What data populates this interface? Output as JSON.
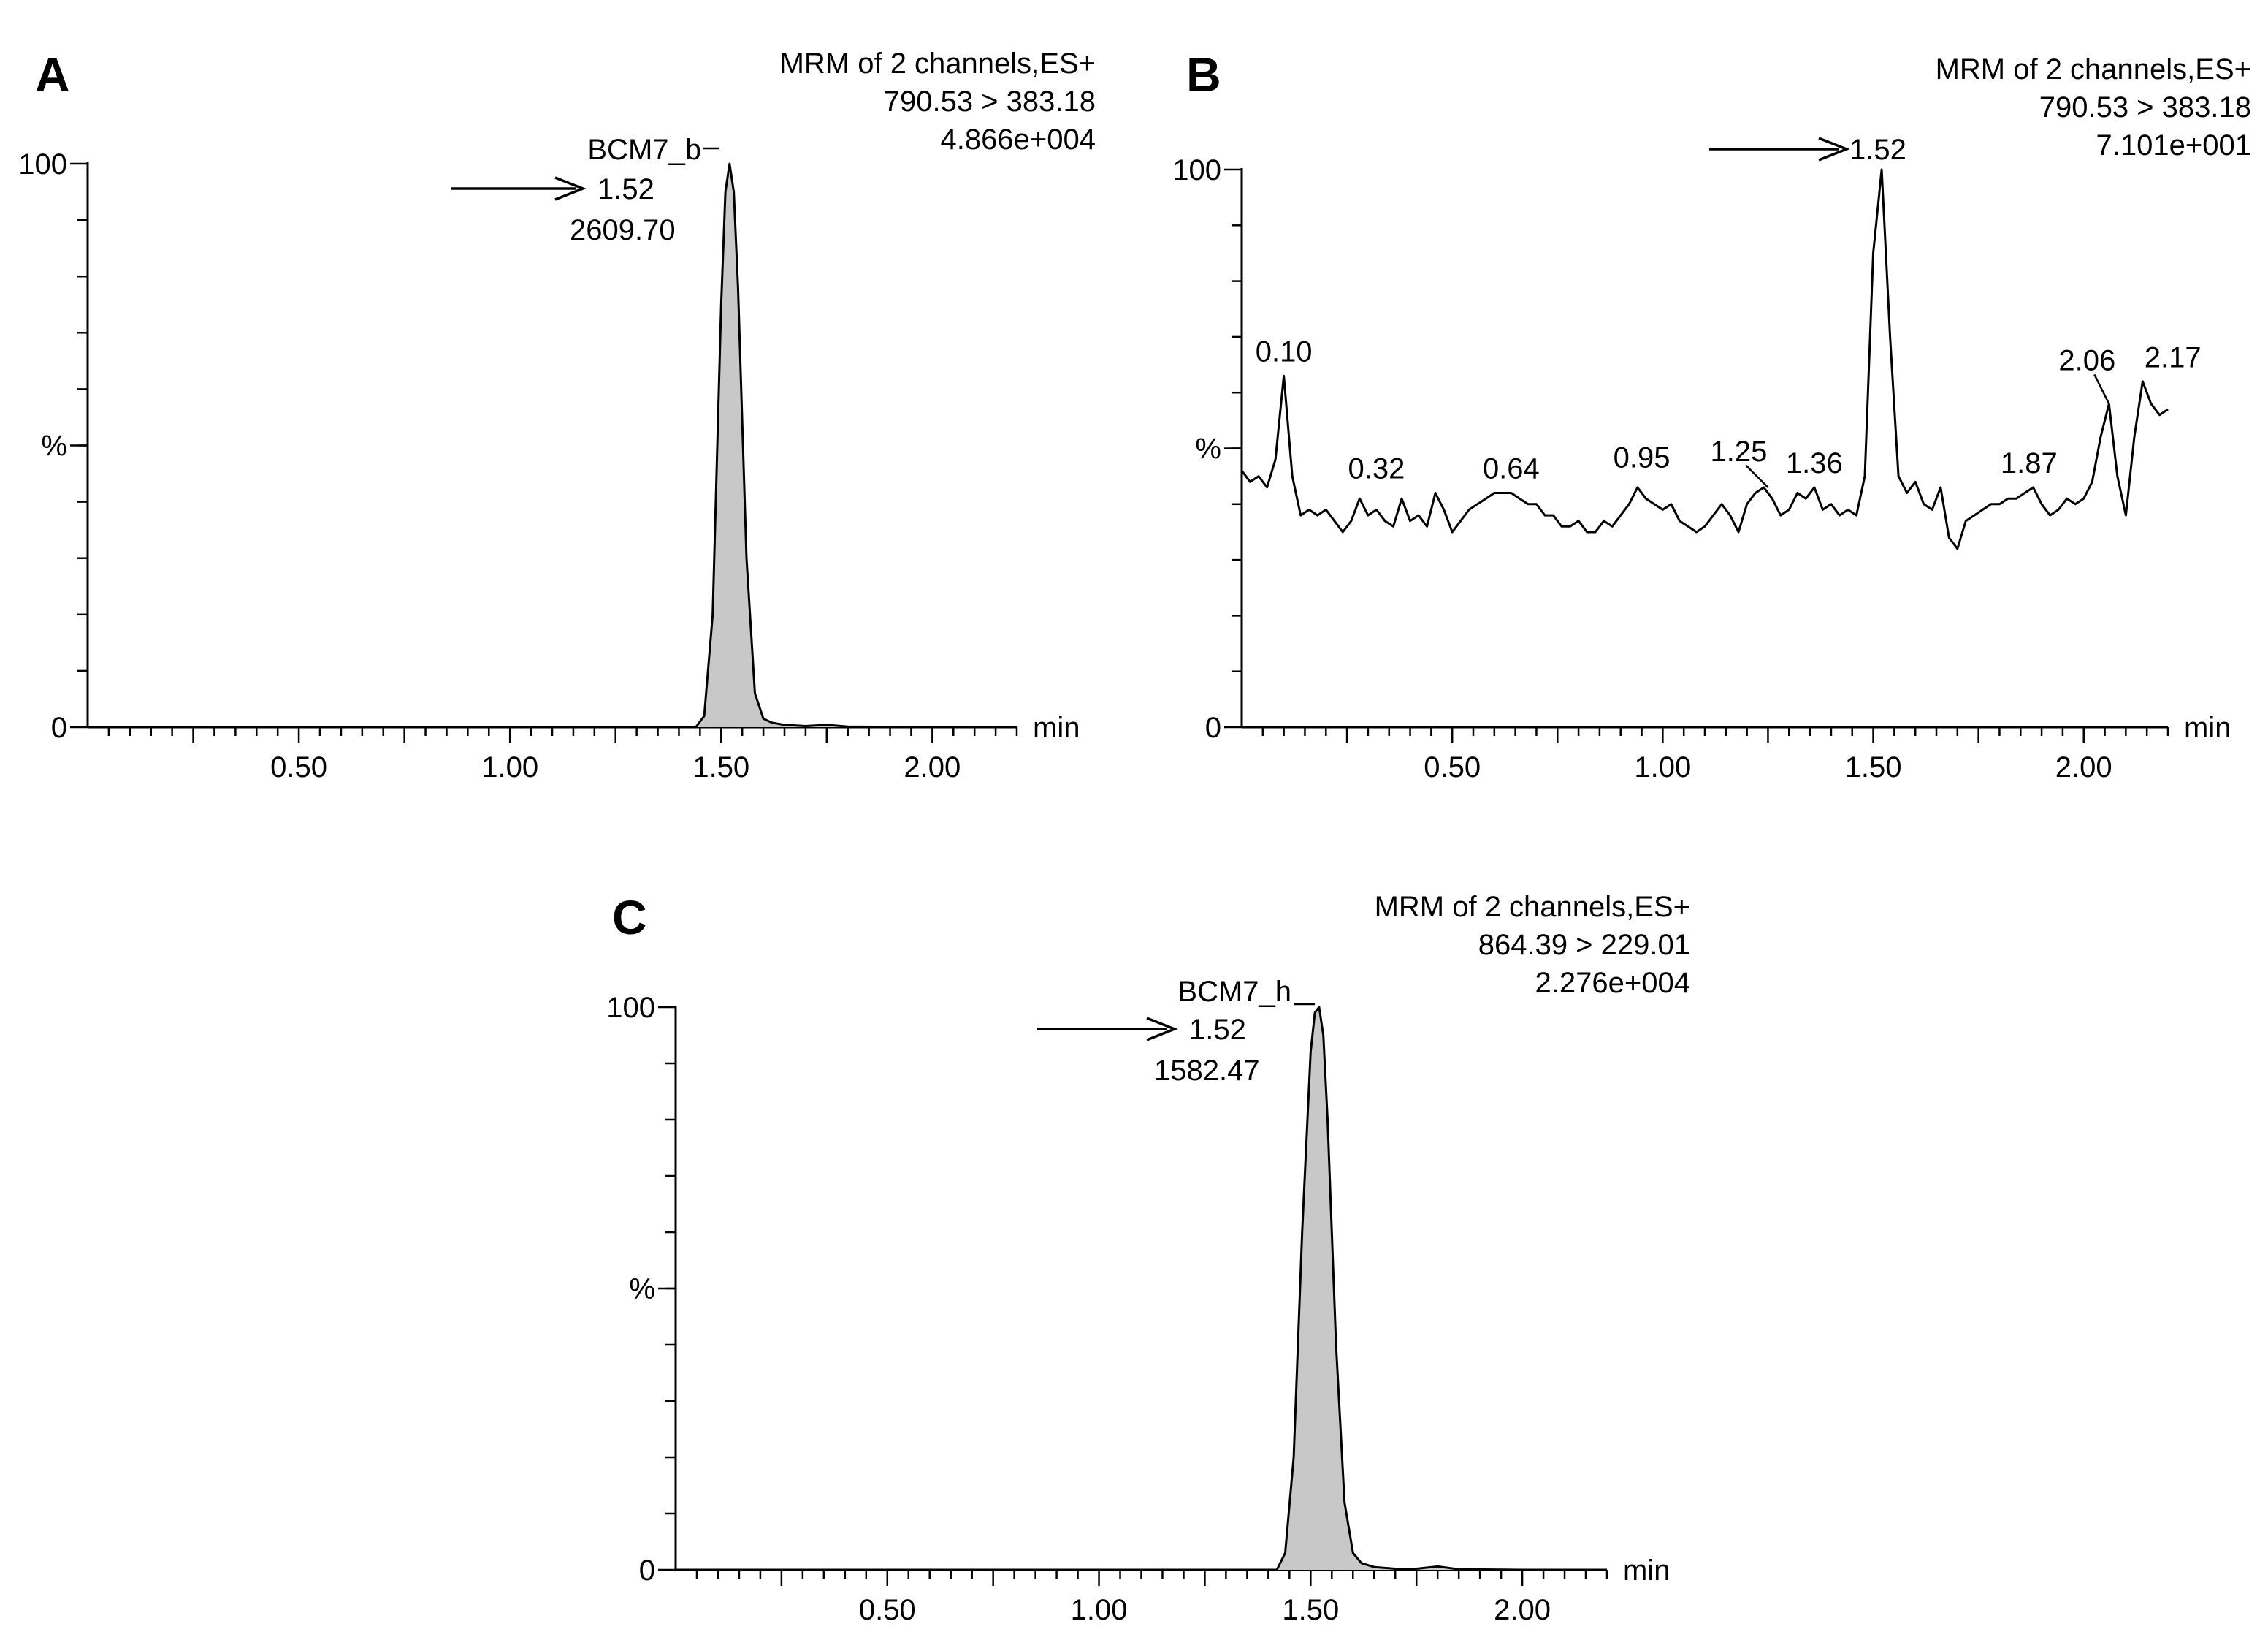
{
  "chart_data": [
    {
      "type": "line",
      "panel": "A",
      "header": [
        "MRM of 2 channels,ES+",
        "790.53 > 383.18",
        "4.866e+004"
      ],
      "xlabel": "min",
      "ylabel": "%",
      "xlim": [
        0,
        2.2
      ],
      "ylim": [
        0,
        100
      ],
      "x_ticks": [
        "0.50",
        "1.00",
        "1.50",
        "2.00"
      ],
      "x_tick_values": [
        0.5,
        1.0,
        1.5,
        2.0
      ],
      "y_ticks": [
        "0",
        "%",
        "100"
      ],
      "y_tick_values": [
        0,
        50,
        100
      ],
      "peak": {
        "name": "BCM7_b",
        "rt_label": "1.52",
        "area_label": "2609.70",
        "rt": 1.52,
        "height": 100
      },
      "filled": true,
      "series": [
        {
          "x": [
            0,
            1.3,
            1.44,
            1.46,
            1.48,
            1.5,
            1.51,
            1.52,
            1.53,
            1.54,
            1.56,
            1.58,
            1.6,
            1.62,
            1.65,
            1.7,
            1.75,
            1.8,
            2.0,
            2.2
          ],
          "y": [
            0,
            0,
            0,
            2,
            20,
            75,
            95,
            100,
            95,
            78,
            30,
            6,
            1.5,
            0.8,
            0.4,
            0.2,
            0.4,
            0.1,
            0,
            0
          ]
        }
      ]
    },
    {
      "type": "line",
      "panel": "B",
      "header": [
        "MRM of 2 channels,ES+",
        "790.53 > 383.18",
        "7.101e+001"
      ],
      "xlabel": "min",
      "ylabel": "%",
      "xlim": [
        0,
        2.2
      ],
      "ylim": [
        0,
        100
      ],
      "x_ticks": [
        "0.50",
        "1.00",
        "1.50",
        "2.00"
      ],
      "x_tick_values": [
        0.5,
        1.0,
        1.5,
        2.0
      ],
      "y_ticks": [
        "0",
        "%",
        "100"
      ],
      "y_tick_values": [
        0,
        50,
        100
      ],
      "arrow_label": "1.52",
      "filled": false,
      "peak_labels": [
        {
          "label": "0.10",
          "x": 0.1,
          "y": 63
        },
        {
          "label": "0.32",
          "x": 0.32,
          "y": 42
        },
        {
          "label": "0.64",
          "x": 0.64,
          "y": 42
        },
        {
          "label": "0.95",
          "x": 0.95,
          "y": 44
        },
        {
          "label": "1.25",
          "x": 1.25,
          "y": 43
        },
        {
          "label": "1.36",
          "x": 1.36,
          "y": 43
        },
        {
          "label": "1.87",
          "x": 1.87,
          "y": 43
        },
        {
          "label": "2.06",
          "x": 2.06,
          "y": 58
        },
        {
          "label": "2.17",
          "x": 2.17,
          "y": 63
        }
      ],
      "series": [
        {
          "x": [
            0,
            0.02,
            0.04,
            0.06,
            0.08,
            0.1,
            0.12,
            0.14,
            0.16,
            0.18,
            0.2,
            0.22,
            0.24,
            0.26,
            0.28,
            0.3,
            0.32,
            0.34,
            0.36,
            0.38,
            0.4,
            0.42,
            0.44,
            0.46,
            0.48,
            0.5,
            0.52,
            0.54,
            0.56,
            0.58,
            0.6,
            0.62,
            0.64,
            0.66,
            0.68,
            0.7,
            0.72,
            0.74,
            0.76,
            0.78,
            0.8,
            0.82,
            0.84,
            0.86,
            0.88,
            0.9,
            0.92,
            0.94,
            0.96,
            0.98,
            1.0,
            1.02,
            1.04,
            1.06,
            1.08,
            1.1,
            1.12,
            1.14,
            1.16,
            1.18,
            1.2,
            1.22,
            1.24,
            1.26,
            1.28,
            1.3,
            1.32,
            1.34,
            1.36,
            1.38,
            1.4,
            1.42,
            1.44,
            1.46,
            1.48,
            1.5,
            1.52,
            1.54,
            1.56,
            1.58,
            1.6,
            1.62,
            1.64,
            1.66,
            1.68,
            1.7,
            1.72,
            1.74,
            1.76,
            1.78,
            1.8,
            1.82,
            1.84,
            1.86,
            1.88,
            1.9,
            1.92,
            1.94,
            1.96,
            1.98,
            2.0,
            2.02,
            2.04,
            2.06,
            2.08,
            2.1,
            2.12,
            2.14,
            2.16,
            2.18,
            2.2
          ],
          "y": [
            46,
            44,
            45,
            43,
            48,
            63,
            45,
            38,
            39,
            38,
            39,
            37,
            35,
            37,
            41,
            38,
            39,
            37,
            36,
            41,
            37,
            38,
            36,
            42,
            39,
            35,
            37,
            39,
            40,
            41,
            42,
            42,
            42,
            41,
            40,
            40,
            38,
            38,
            36,
            36,
            37,
            35,
            35,
            37,
            36,
            38,
            40,
            43,
            41,
            40,
            39,
            40,
            37,
            36,
            35,
            36,
            38,
            40,
            38,
            35,
            40,
            42,
            43,
            41,
            38,
            39,
            42,
            41,
            43,
            39,
            40,
            38,
            39,
            38,
            45,
            85,
            100,
            70,
            45,
            42,
            44,
            40,
            39,
            43,
            34,
            32,
            37,
            38,
            39,
            40,
            40,
            41,
            41,
            42,
            43,
            40,
            38,
            39,
            41,
            40,
            41,
            44,
            52,
            58,
            45,
            38,
            52,
            62,
            58,
            56,
            57
          ]
        }
      ]
    },
    {
      "type": "line",
      "panel": "C",
      "header": [
        "MRM of 2 channels,ES+",
        "864.39 > 229.01",
        "2.276e+004"
      ],
      "xlabel": "min",
      "ylabel": "%",
      "xlim": [
        0,
        2.2
      ],
      "ylim": [
        0,
        100
      ],
      "x_ticks": [
        "0.50",
        "1.00",
        "1.50",
        "2.00"
      ],
      "x_tick_values": [
        0.5,
        1.0,
        1.5,
        2.0
      ],
      "y_ticks": [
        "0",
        "%",
        "100"
      ],
      "y_tick_values": [
        0,
        50,
        100
      ],
      "peak": {
        "name": "BCM7_h",
        "rt_label": "1.52",
        "area_label": "1582.47",
        "rt": 1.52,
        "height": 100
      },
      "filled": true,
      "series": [
        {
          "x": [
            0,
            1.3,
            1.42,
            1.44,
            1.46,
            1.48,
            1.5,
            1.51,
            1.52,
            1.53,
            1.54,
            1.56,
            1.58,
            1.6,
            1.62,
            1.65,
            1.7,
            1.75,
            1.8,
            1.85,
            2.0,
            2.2
          ],
          "y": [
            0,
            0,
            0,
            3,
            20,
            60,
            92,
            99,
            100,
            95,
            80,
            40,
            12,
            3,
            1.2,
            0.5,
            0.2,
            0.2,
            0.6,
            0.1,
            0,
            0
          ]
        }
      ]
    }
  ]
}
